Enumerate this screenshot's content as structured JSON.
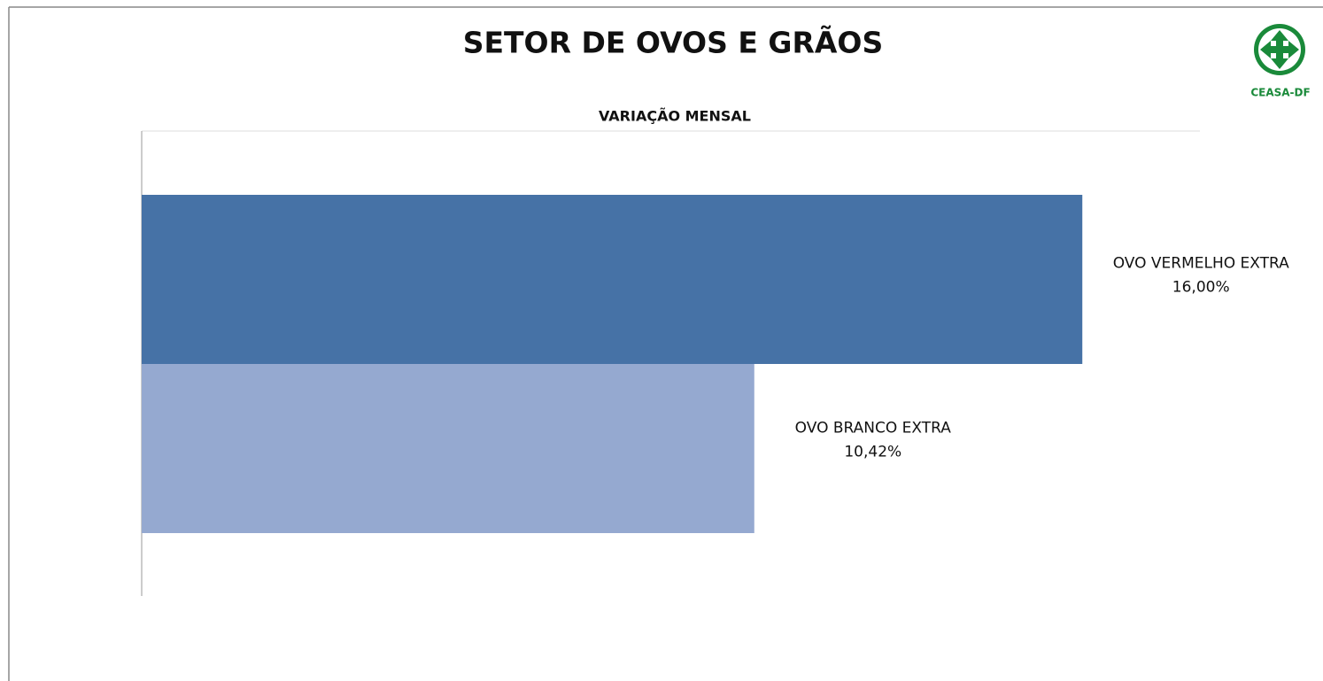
{
  "chart_data": {
    "type": "barh",
    "title": "SETOR DE OVOS E GRÃOS",
    "subtitle": "VARIAÇÃO MENSAL",
    "logo": "CEASA-DF",
    "categories": [
      "OVO VERMELHO EXTRA",
      "OVO BRANCO EXTRA"
    ],
    "values": [
      16,
      10.42
    ],
    "value_labels": [
      "16,00%",
      "10,42%"
    ],
    "colors": [
      "#4672a6",
      "#95a9d0"
    ],
    "xlim": [
      0,
      18
    ]
  }
}
